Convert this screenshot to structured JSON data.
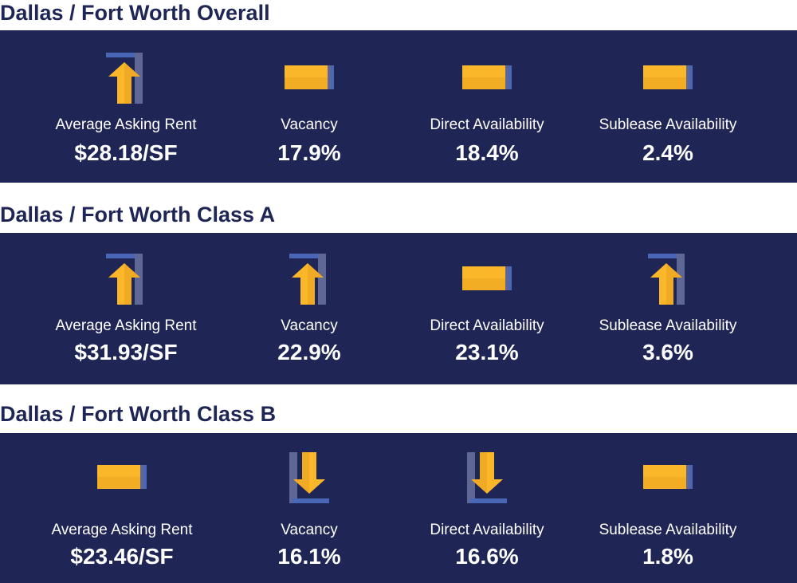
{
  "sections": [
    {
      "title": "Dallas / Fort Worth Overall",
      "stats": [
        {
          "label": "Average Asking Rent",
          "value": "$28.18/SF",
          "trend": "up",
          "icon": "arrow-up-icon"
        },
        {
          "label": "Vacancy",
          "value": "17.9%",
          "trend": "flat",
          "icon": "flat-bar-icon"
        },
        {
          "label": "Direct Availability",
          "value": "18.4%",
          "trend": "flat",
          "icon": "flat-bar-icon"
        },
        {
          "label": "Sublease Availability",
          "value": "2.4%",
          "trend": "flat",
          "icon": "flat-bar-icon"
        }
      ]
    },
    {
      "title": "Dallas / Fort Worth Class A",
      "stats": [
        {
          "label": "Average Asking Rent",
          "value": "$31.93/SF",
          "trend": "up",
          "icon": "arrow-up-icon"
        },
        {
          "label": "Vacancy",
          "value": "22.9%",
          "trend": "up",
          "icon": "arrow-up-icon"
        },
        {
          "label": "Direct Availability",
          "value": "23.1%",
          "trend": "flat",
          "icon": "flat-bar-icon"
        },
        {
          "label": "Sublease Availability",
          "value": "3.6%",
          "trend": "up",
          "icon": "arrow-up-icon"
        }
      ]
    },
    {
      "title": "Dallas / Fort Worth Class B",
      "stats": [
        {
          "label": "Average Asking Rent",
          "value": "$23.46/SF",
          "trend": "flat",
          "icon": "flat-bar-icon"
        },
        {
          "label": "Vacancy",
          "value": "16.1%",
          "trend": "down",
          "icon": "arrow-down-icon"
        },
        {
          "label": "Direct Availability",
          "value": "16.6%",
          "trend": "down",
          "icon": "arrow-down-icon"
        },
        {
          "label": "Sublease Availability",
          "value": "1.8%",
          "trend": "flat",
          "icon": "flat-bar-icon"
        }
      ]
    }
  ],
  "colors": {
    "panel": "#1f2656",
    "title": "#1f2656",
    "arrow": "#fbb72a",
    "arrow_shade": "#e39c1c",
    "accent_blue": "#4a66b7",
    "accent_slate": "#5f6894"
  }
}
